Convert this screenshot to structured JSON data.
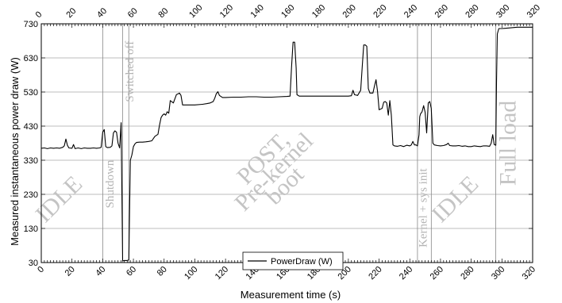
{
  "chart_data": {
    "type": "line",
    "title": "",
    "xlabel": "Measurement time (s)",
    "ylabel": "Measured instantaneous power draw (W)",
    "xlim": [
      0,
      320
    ],
    "ylim": [
      30,
      730
    ],
    "xticks": [
      0,
      20,
      40,
      60,
      80,
      100,
      120,
      140,
      160,
      180,
      200,
      220,
      240,
      260,
      280,
      300,
      320
    ],
    "yticks": [
      30,
      130,
      230,
      330,
      430,
      530,
      630,
      730
    ],
    "grid": true,
    "legend_position": "bottom-center",
    "series": [
      {
        "name": "PowerDraw (W)",
        "color": "#000000",
        "points": [
          [
            0,
            365
          ],
          [
            2,
            366
          ],
          [
            4,
            364
          ],
          [
            6,
            366
          ],
          [
            8,
            365
          ],
          [
            10,
            366
          ],
          [
            12,
            365
          ],
          [
            14,
            368
          ],
          [
            15,
            372
          ],
          [
            16,
            392
          ],
          [
            17,
            374
          ],
          [
            18,
            366
          ],
          [
            20,
            365
          ],
          [
            21,
            376
          ],
          [
            22,
            364
          ],
          [
            24,
            366
          ],
          [
            26,
            364
          ],
          [
            28,
            366
          ],
          [
            30,
            365
          ],
          [
            32,
            365
          ],
          [
            34,
            366
          ],
          [
            36,
            365
          ],
          [
            38,
            366
          ],
          [
            39,
            368
          ],
          [
            40,
            412
          ],
          [
            41,
            420
          ],
          [
            42,
            370
          ],
          [
            43,
            367
          ],
          [
            45,
            368
          ],
          [
            46,
            372
          ],
          [
            47,
            410
          ],
          [
            48,
            416
          ],
          [
            49,
            412
          ],
          [
            50,
            380
          ],
          [
            51,
            366
          ],
          [
            52,
            440
          ],
          [
            53,
            35
          ],
          [
            54,
            36
          ],
          [
            55,
            36
          ],
          [
            56,
            36
          ],
          [
            57,
            38
          ],
          [
            58,
            330
          ],
          [
            59,
            345
          ],
          [
            60,
            370
          ],
          [
            61,
            378
          ],
          [
            62,
            382
          ],
          [
            64,
            383
          ],
          [
            66,
            383
          ],
          [
            68,
            384
          ],
          [
            70,
            385
          ],
          [
            72,
            387
          ],
          [
            74,
            400
          ],
          [
            76,
            406
          ],
          [
            77,
            432
          ],
          [
            78,
            455
          ],
          [
            79,
            462
          ],
          [
            80,
            466
          ],
          [
            81,
            462
          ],
          [
            82,
            472
          ],
          [
            83,
            468
          ],
          [
            84,
            505
          ],
          [
            86,
            498
          ],
          [
            88,
            522
          ],
          [
            90,
            527
          ],
          [
            91,
            520
          ],
          [
            92,
            492
          ],
          [
            95,
            492
          ],
          [
            100,
            492
          ],
          [
            105,
            494
          ],
          [
            108,
            496
          ],
          [
            110,
            498
          ],
          [
            112,
            502
          ],
          [
            113,
            512
          ],
          [
            114,
            525
          ],
          [
            115,
            531
          ],
          [
            116,
            520
          ],
          [
            118,
            514
          ],
          [
            120,
            514
          ],
          [
            125,
            515
          ],
          [
            130,
            515
          ],
          [
            135,
            516
          ],
          [
            140,
            516
          ],
          [
            145,
            515
          ],
          [
            150,
            515
          ],
          [
            155,
            516
          ],
          [
            160,
            517
          ],
          [
            162,
            518
          ],
          [
            163,
            604
          ],
          [
            164,
            676
          ],
          [
            165,
            676
          ],
          [
            166,
            600
          ],
          [
            166.5,
            522
          ],
          [
            168,
            518
          ],
          [
            170,
            518
          ],
          [
            180,
            518
          ],
          [
            190,
            518
          ],
          [
            200,
            518
          ],
          [
            202,
            519
          ],
          [
            203,
            535
          ],
          [
            204,
            522
          ],
          [
            206,
            520
          ],
          [
            208,
            535
          ],
          [
            209,
            603
          ],
          [
            210,
            668
          ],
          [
            211,
            668
          ],
          [
            212,
            664
          ],
          [
            213,
            540
          ],
          [
            214,
            527
          ],
          [
            216,
            527
          ],
          [
            217,
            548
          ],
          [
            218,
            566
          ],
          [
            219,
            532
          ],
          [
            220,
            478
          ],
          [
            222,
            482
          ],
          [
            223,
            500
          ],
          [
            224,
            502
          ],
          [
            225,
            498
          ],
          [
            226,
            462
          ],
          [
            227,
            505
          ],
          [
            228,
            462
          ],
          [
            229,
            375
          ],
          [
            230,
            372
          ],
          [
            232,
            371
          ],
          [
            234,
            373
          ],
          [
            236,
            370
          ],
          [
            238,
            374
          ],
          [
            240,
            372
          ],
          [
            241,
            375
          ],
          [
            242,
            385
          ],
          [
            243,
            375
          ],
          [
            244,
            375
          ],
          [
            245,
            372
          ],
          [
            246,
            405
          ],
          [
            246.5,
            458
          ],
          [
            247,
            466
          ],
          [
            248,
            472
          ],
          [
            249,
            490
          ],
          [
            250,
            470
          ],
          [
            251,
            410
          ],
          [
            252,
            498
          ],
          [
            253,
            502
          ],
          [
            254,
            482
          ],
          [
            255,
            380
          ],
          [
            256,
            375
          ],
          [
            258,
            373
          ],
          [
            260,
            372
          ],
          [
            262,
            373
          ],
          [
            264,
            376
          ],
          [
            265,
            380
          ],
          [
            266,
            373
          ],
          [
            268,
            372
          ],
          [
            270,
            372
          ],
          [
            272,
            373
          ],
          [
            274,
            371
          ],
          [
            276,
            372
          ],
          [
            278,
            370
          ],
          [
            280,
            370
          ],
          [
            282,
            372
          ],
          [
            284,
            371
          ],
          [
            286,
            370
          ],
          [
            288,
            372
          ],
          [
            290,
            372
          ],
          [
            292,
            371
          ],
          [
            293,
            380
          ],
          [
            294,
            405
          ],
          [
            295,
            376
          ],
          [
            296,
            374
          ],
          [
            296.5,
            560
          ],
          [
            297,
            700
          ],
          [
            298,
            716
          ],
          [
            300,
            716
          ],
          [
            305,
            718
          ],
          [
            310,
            720
          ],
          [
            315,
            720
          ],
          [
            320,
            720
          ]
        ]
      }
    ],
    "phase_lines": [
      40,
      53,
      57,
      245,
      254,
      296
    ],
    "phase_labels": [
      {
        "text": "IDLE",
        "x": 15,
        "y": 200,
        "rotate": -45,
        "size": "large"
      },
      {
        "text": "Shutdown",
        "x": 47,
        "y": 260,
        "rotate": -90,
        "size": "small"
      },
      {
        "text": "Switched off",
        "x": 60,
        "y": 590,
        "rotate": -90,
        "size": "small"
      },
      {
        "text": "POST,",
        "x": 148,
        "y": 320,
        "rotate": -45,
        "size": "large"
      },
      {
        "text": "Pre-kernel",
        "x": 155,
        "y": 280,
        "rotate": -45,
        "size": "large"
      },
      {
        "text": "boot",
        "x": 162,
        "y": 240,
        "rotate": -45,
        "size": "large"
      },
      {
        "text": "Kernel + sys init",
        "x": 251,
        "y": 190,
        "rotate": -90,
        "size": "small"
      },
      {
        "text": "IDLE",
        "x": 273,
        "y": 200,
        "rotate": -45,
        "size": "large"
      },
      {
        "text": "Full load",
        "x": 309,
        "y": 380,
        "rotate": -90,
        "size": "large"
      }
    ]
  }
}
